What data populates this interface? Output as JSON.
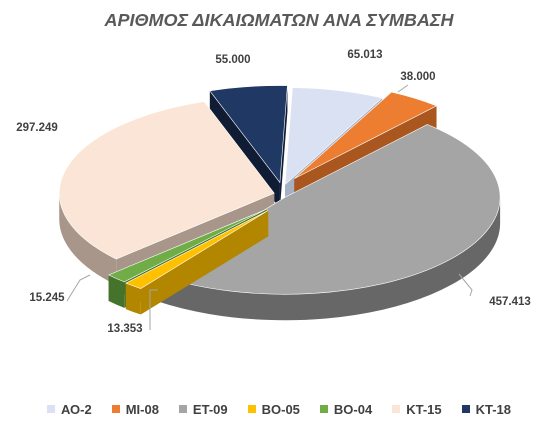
{
  "chart_data": {
    "type": "pie",
    "title": "ΑΡΙΘΜΟΣ ΔΙΚΑΙΩΜΑΤΩΝ ΑΝΑ ΣΥΜΒΑΣΗ",
    "legend_position": "bottom",
    "slices": [
      {
        "name": "ΑΟ-2",
        "value": 65013,
        "label": "65.013",
        "color": "#d9e1f2",
        "side": "#a6b0c3"
      },
      {
        "name": "ΜΙ-08",
        "value": 38000,
        "label": "38.000",
        "color": "#ed7d31",
        "side": "#a9561f"
      },
      {
        "name": "ΕΤ-09",
        "value": 457413,
        "label": "457.413",
        "color": "#a5a5a5",
        "side": "#676767"
      },
      {
        "name": "ΒΟ-05",
        "value": 13353,
        "label": "13.353",
        "color": "#ffc000",
        "side": "#b38600"
      },
      {
        "name": "ΒΟ-04",
        "value": 15245,
        "label": "15.245",
        "color": "#70ad47",
        "side": "#46732b"
      },
      {
        "name": "ΚΤ-15",
        "value": 297249,
        "label": "297.249",
        "color": "#fbe5d6",
        "side": "#a8968b"
      },
      {
        "name": "ΚΤ-18",
        "value": 55000,
        "label": "55.000",
        "color": "#203864",
        "side": "#0f1c33"
      }
    ]
  }
}
